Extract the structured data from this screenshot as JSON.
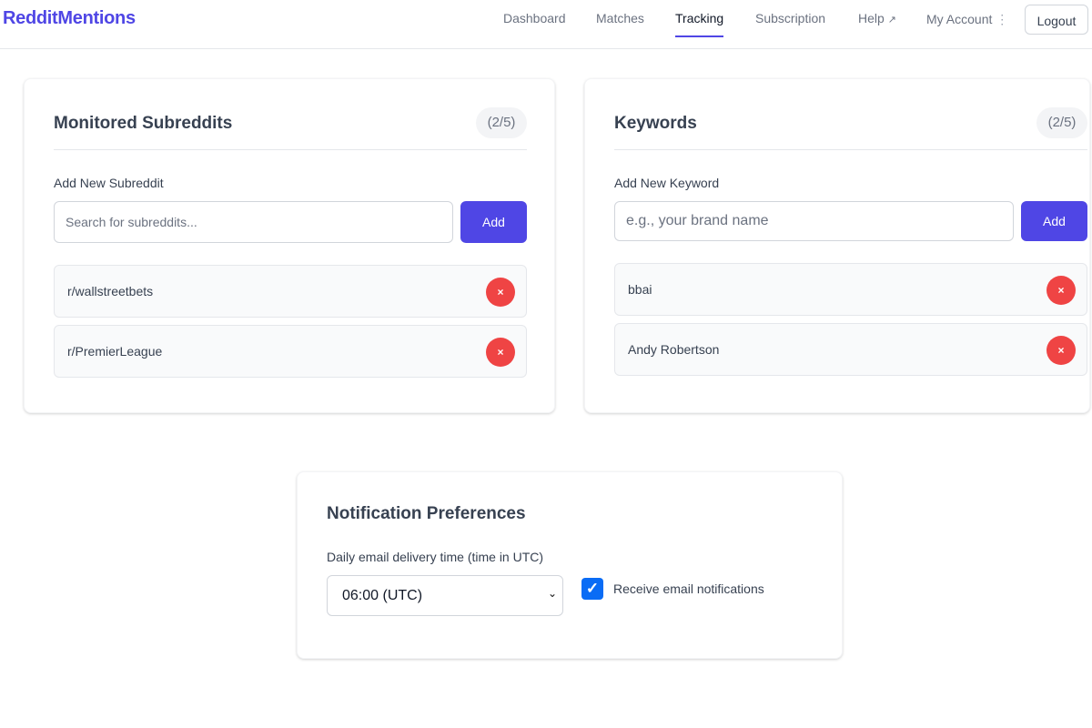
{
  "nav": {
    "logo": "RedditMentions",
    "items": [
      "Dashboard",
      "Matches",
      "Tracking",
      "Subscription",
      "Help",
      "My Account"
    ],
    "active": "Tracking",
    "help_icon": "external-link-icon",
    "account_icon": "vertical-dots-icon",
    "logout_label": "Logout"
  },
  "subreddits": {
    "title": "Monitored Subreddits",
    "count": "(2/5)",
    "add_label": "Add New Subreddit",
    "placeholder": "Search for subreddits...",
    "add_button": "Add",
    "items": [
      "r/wallstreetbets",
      "r/PremierLeague"
    ],
    "remove_icon": "×"
  },
  "keywords": {
    "title": "Keywords",
    "count": "(2/5)",
    "add_label": "Add New Keyword",
    "placeholder": "e.g., your brand name",
    "add_button": "Add",
    "items": [
      "bbai",
      "Andy Robertson"
    ],
    "remove_icon": "×"
  },
  "notifications": {
    "title": "Notification Preferences",
    "time_label": "Daily email delivery time (time in UTC)",
    "time_value": "06:00 (UTC)",
    "checkbox_label": "Receive email notifications",
    "checkbox_checked": true
  },
  "colors": {
    "accent": "#4f46e5",
    "danger": "#ef4444",
    "checkbox": "#0a6cf5"
  }
}
